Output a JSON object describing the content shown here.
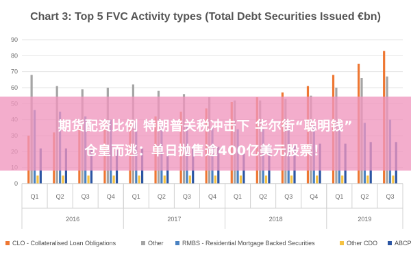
{
  "chart_data": {
    "type": "bar",
    "title": "Chart 3: Top 5 FVC Activity types (Total Debt Securities Issued €bn)",
    "xlabel": "",
    "ylabel": "",
    "ylim": [
      0,
      90
    ],
    "yticks": [
      0,
      10,
      20,
      30,
      40,
      50,
      60,
      70,
      80,
      90
    ],
    "grid": true,
    "legend_position": "bottom",
    "categories": [
      "Q1",
      "Q2",
      "Q3",
      "Q4",
      "Q1",
      "Q2",
      "Q3",
      "Q4",
      "Q1",
      "Q2",
      "Q3",
      "Q4",
      "Q1",
      "Q2",
      "Q3"
    ],
    "year_groups": [
      {
        "label": "2016",
        "count": 4
      },
      {
        "label": "2017",
        "count": 4
      },
      {
        "label": "2018",
        "count": 4
      },
      {
        "label": "2019",
        "count": 3
      }
    ],
    "series": [
      {
        "name": "CLO - Collateralised Loan Obligations",
        "color": "#ee7733",
        "values": [
          30,
          32,
          35,
          38,
          40,
          42,
          45,
          47,
          51,
          54,
          57,
          61,
          68,
          75,
          83
        ]
      },
      {
        "name": "Other",
        "color": "#a5a5a5",
        "values": [
          68,
          61,
          59,
          60,
          62,
          58,
          56,
          54,
          52,
          52,
          53,
          55,
          60,
          66,
          67
        ]
      },
      {
        "name": "RMBS - Residential Mortgage Backed Securities",
        "color": "#4a82c2",
        "values": [
          46,
          45,
          42,
          40,
          38,
          37,
          36,
          35,
          34,
          34,
          35,
          36,
          37,
          38,
          40
        ]
      },
      {
        "name": "Other CDO",
        "color": "#f5c242",
        "values": [
          5,
          5,
          5,
          5,
          5,
          5,
          5,
          5,
          5,
          5,
          5,
          5,
          5,
          5,
          5
        ]
      },
      {
        "name": "ABCP",
        "color": "#2b55a3",
        "values": [
          22,
          22,
          21,
          21,
          22,
          22,
          23,
          23,
          23,
          24,
          24,
          25,
          25,
          26,
          26
        ]
      }
    ]
  },
  "overlay": {
    "line1": "期货配资比例 特朗普关税冲击下 华尔街“聪明钱”",
    "line2": "仓皇而逃：单日抛售逾400亿美元股票！"
  }
}
